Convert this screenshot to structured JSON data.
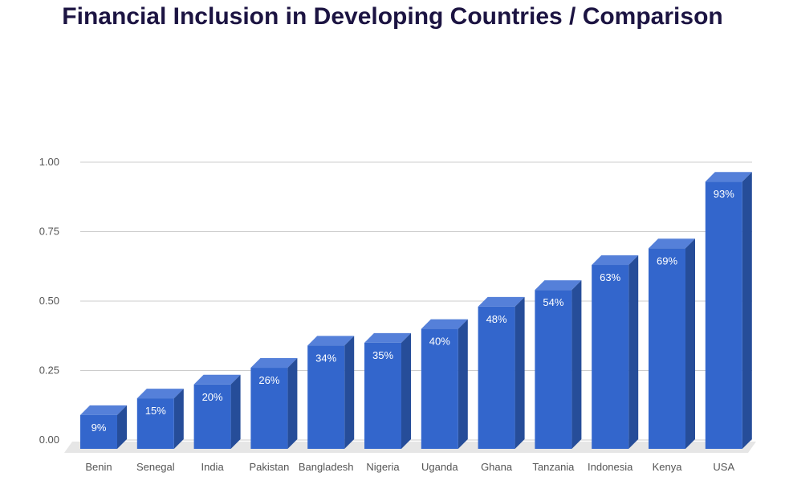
{
  "chart_data": {
    "type": "bar",
    "title": "Financial Inclusion in Developing Countries / Comparison",
    "xlabel": "",
    "ylabel": "",
    "ylim": [
      0,
      1
    ],
    "yticks": [
      "0.00",
      "0.25",
      "0.50",
      "0.75",
      "1.00"
    ],
    "grid": true,
    "categories": [
      "Benin",
      "Senegal",
      "India",
      "Pakistan",
      "Bangladesh",
      "Nigeria",
      "Uganda",
      "Ghana",
      "Tanzania",
      "Indonesia",
      "Kenya",
      "USA"
    ],
    "values": [
      0.09,
      0.15,
      0.2,
      0.26,
      0.34,
      0.35,
      0.4,
      0.48,
      0.54,
      0.63,
      0.69,
      0.93
    ],
    "data_labels": [
      "9%",
      "15%",
      "20%",
      "26%",
      "34%",
      "35%",
      "40%",
      "48%",
      "54%",
      "63%",
      "69%",
      "93%"
    ],
    "colors": {
      "front": "#3366cc",
      "top": "#5580d9",
      "side": "#264d99",
      "floor": "#e6e6e6",
      "title": "#1c1442"
    }
  }
}
